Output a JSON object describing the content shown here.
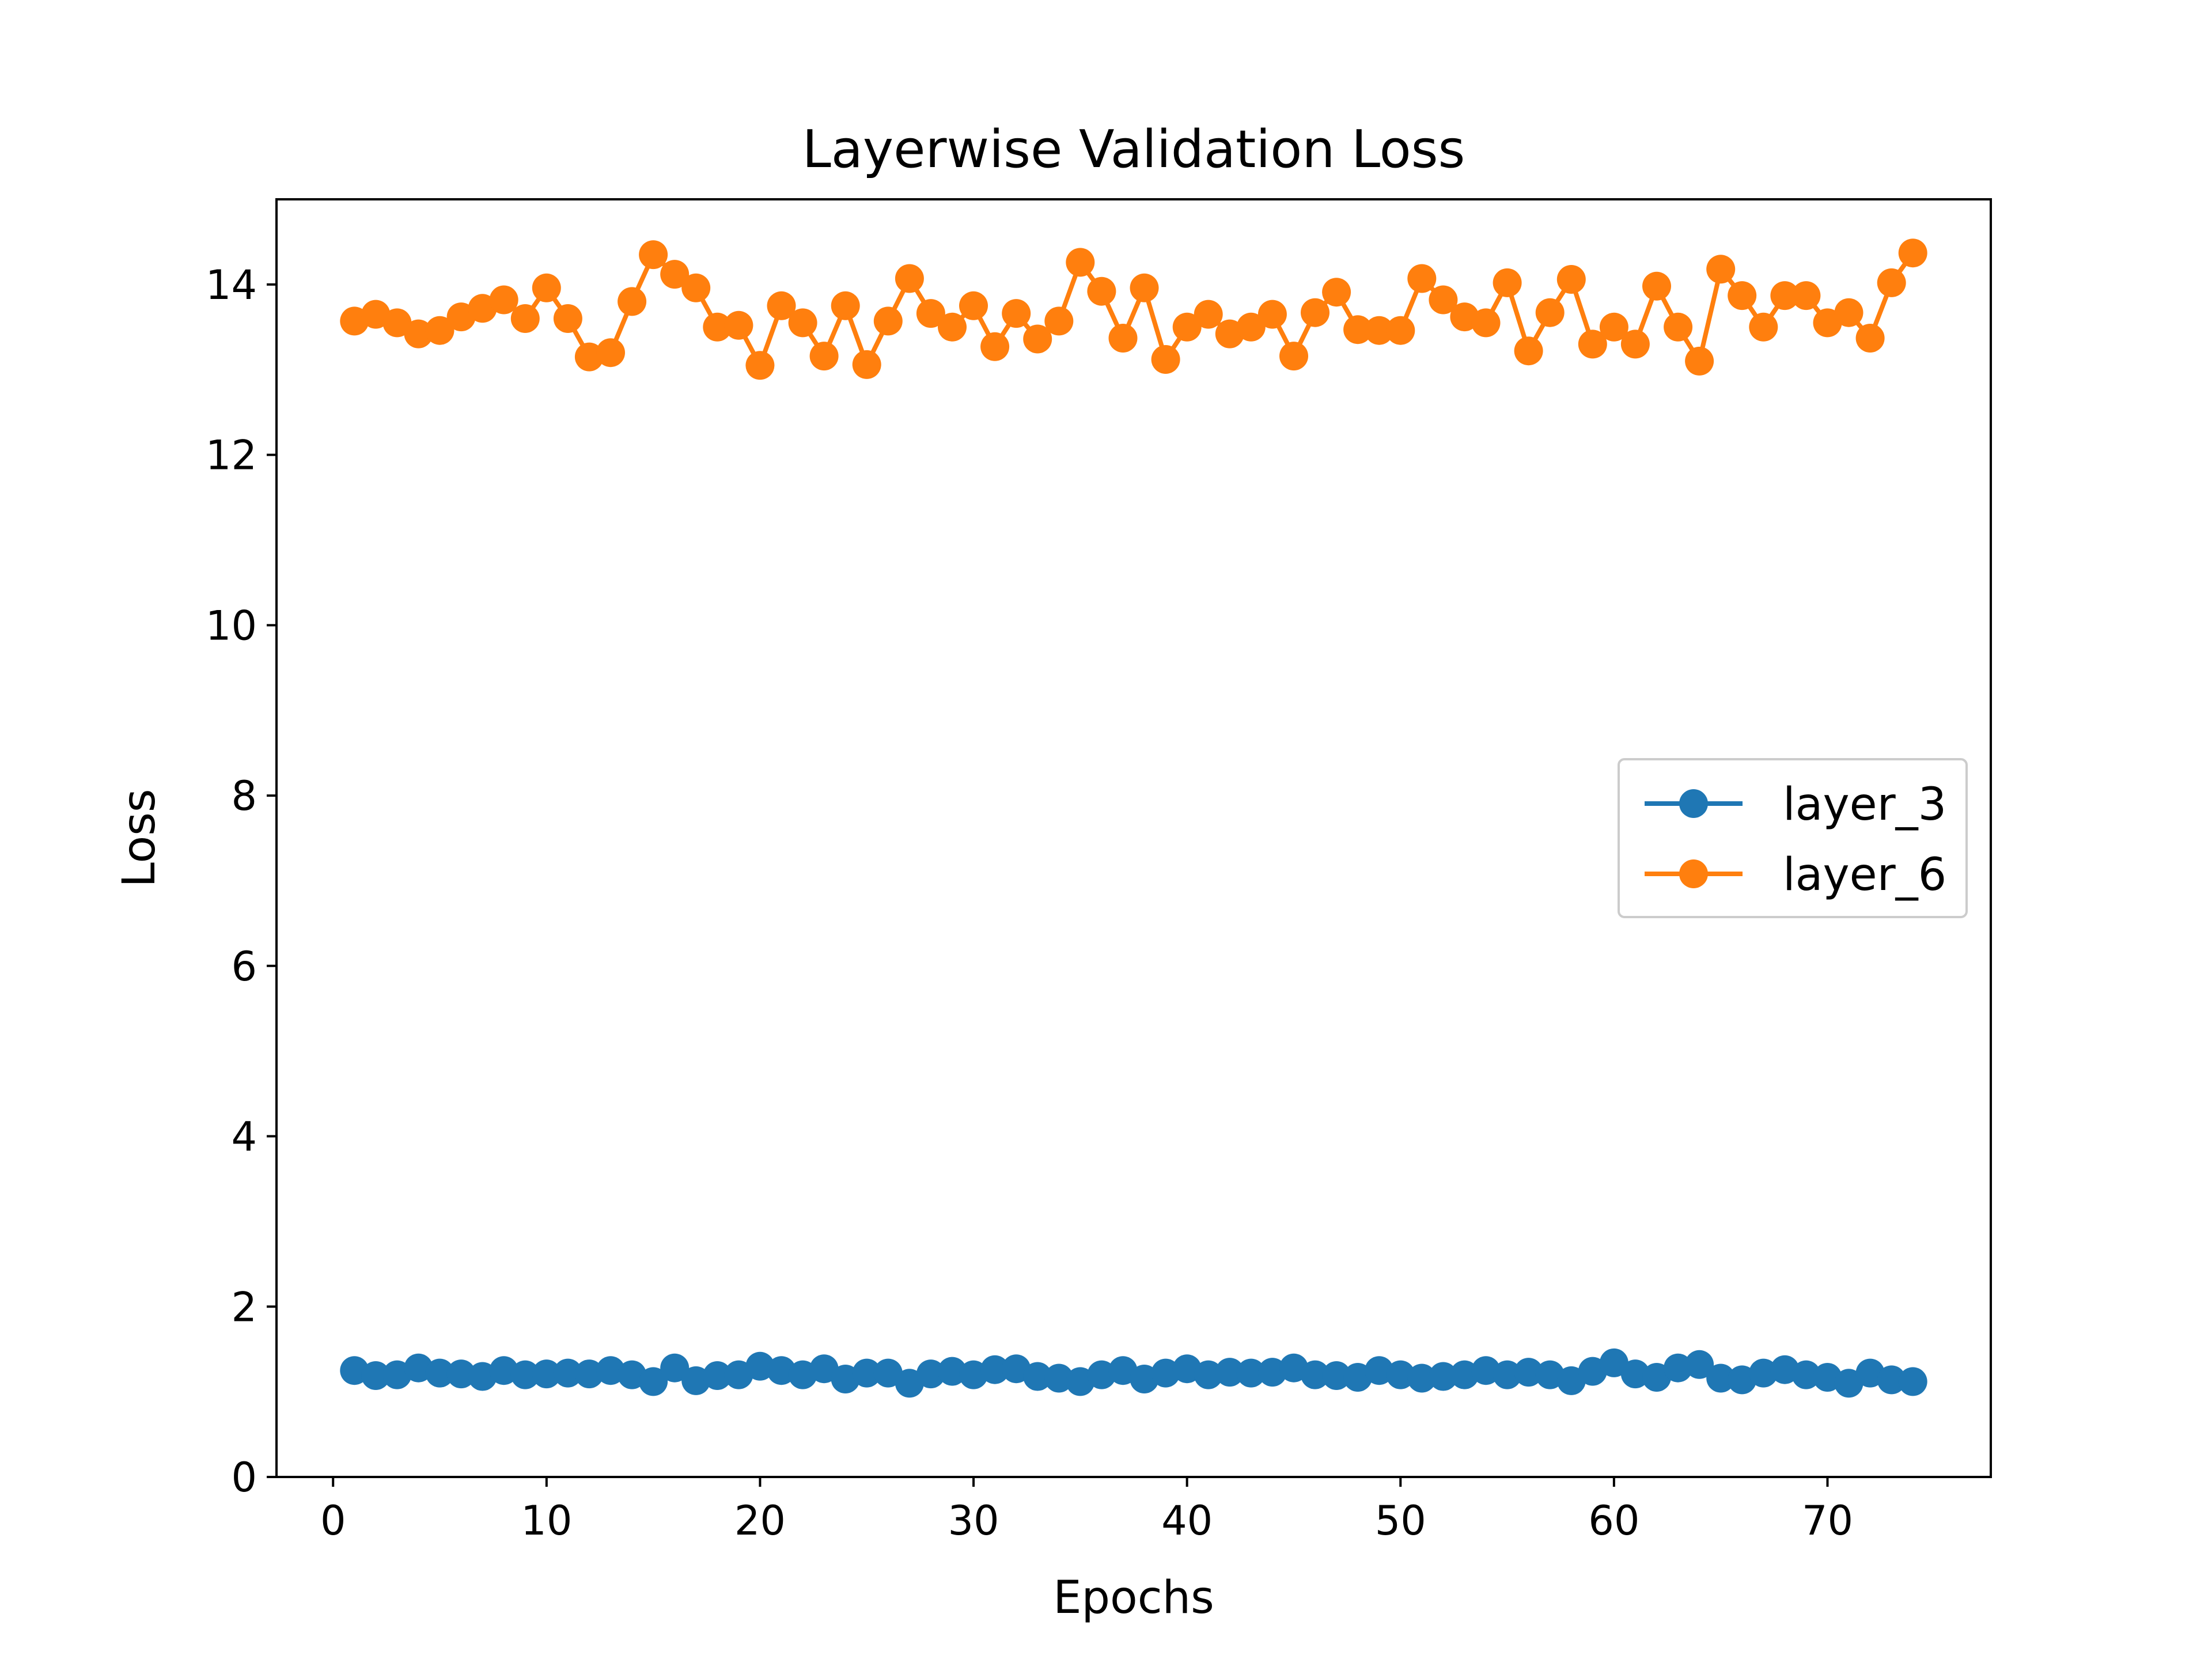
{
  "chart_data": {
    "type": "line",
    "title": "Layerwise Validation Loss",
    "xlabel": "Epochs",
    "ylabel": "Loss",
    "xlim": [
      -2.65,
      77.65
    ],
    "ylim": [
      0,
      15
    ],
    "xticks": [
      0,
      10,
      20,
      30,
      40,
      50,
      60,
      70
    ],
    "yticks": [
      0,
      2,
      4,
      6,
      8,
      10,
      12,
      14
    ],
    "grid": false,
    "legend_position": "center-right",
    "x": [
      1,
      2,
      3,
      4,
      5,
      6,
      7,
      8,
      9,
      10,
      11,
      12,
      13,
      14,
      15,
      16,
      17,
      18,
      19,
      20,
      21,
      22,
      23,
      24,
      25,
      26,
      27,
      28,
      29,
      30,
      31,
      32,
      33,
      34,
      35,
      36,
      37,
      38,
      39,
      40,
      41,
      42,
      43,
      44,
      45,
      46,
      47,
      48,
      49,
      50,
      51,
      52,
      53,
      54,
      55,
      56,
      57,
      58,
      59,
      60,
      61,
      62,
      63,
      64,
      65,
      66,
      67,
      68,
      69,
      70,
      71,
      72,
      73,
      74
    ],
    "series": [
      {
        "name": "layer_3",
        "color": "#1f77b4",
        "values": [
          1.25,
          1.19,
          1.2,
          1.28,
          1.22,
          1.21,
          1.18,
          1.25,
          1.2,
          1.21,
          1.22,
          1.21,
          1.25,
          1.2,
          1.12,
          1.28,
          1.13,
          1.19,
          1.2,
          1.3,
          1.25,
          1.2,
          1.27,
          1.15,
          1.22,
          1.22,
          1.1,
          1.21,
          1.24,
          1.2,
          1.26,
          1.27,
          1.18,
          1.16,
          1.12,
          1.2,
          1.25,
          1.15,
          1.22,
          1.27,
          1.2,
          1.23,
          1.22,
          1.23,
          1.28,
          1.2,
          1.19,
          1.17,
          1.25,
          1.2,
          1.16,
          1.18,
          1.2,
          1.25,
          1.2,
          1.23,
          1.2,
          1.13,
          1.24,
          1.34,
          1.21,
          1.17,
          1.28,
          1.32,
          1.16,
          1.14,
          1.22,
          1.26,
          1.2,
          1.17,
          1.1,
          1.22,
          1.14,
          1.12
        ]
      },
      {
        "name": "layer_6",
        "color": "#ff7f0e",
        "values": [
          13.57,
          13.65,
          13.55,
          13.42,
          13.46,
          13.62,
          13.72,
          13.82,
          13.6,
          13.96,
          13.6,
          13.15,
          13.2,
          13.8,
          14.35,
          14.12,
          13.96,
          13.5,
          13.52,
          13.05,
          13.75,
          13.55,
          13.16,
          13.75,
          13.06,
          13.57,
          14.07,
          13.66,
          13.5,
          13.75,
          13.27,
          13.66,
          13.36,
          13.57,
          14.26,
          13.92,
          13.37,
          13.96,
          13.12,
          13.5,
          13.65,
          13.42,
          13.5,
          13.65,
          13.16,
          13.67,
          13.91,
          13.47,
          13.46,
          13.46,
          14.07,
          13.82,
          13.62,
          13.55,
          14.02,
          13.22,
          13.67,
          14.06,
          13.3,
          13.5,
          13.3,
          13.98,
          13.5,
          13.1,
          14.18,
          13.87,
          13.5,
          13.87,
          13.87,
          13.55,
          13.67,
          13.37,
          14.02,
          14.37
        ]
      }
    ]
  }
}
